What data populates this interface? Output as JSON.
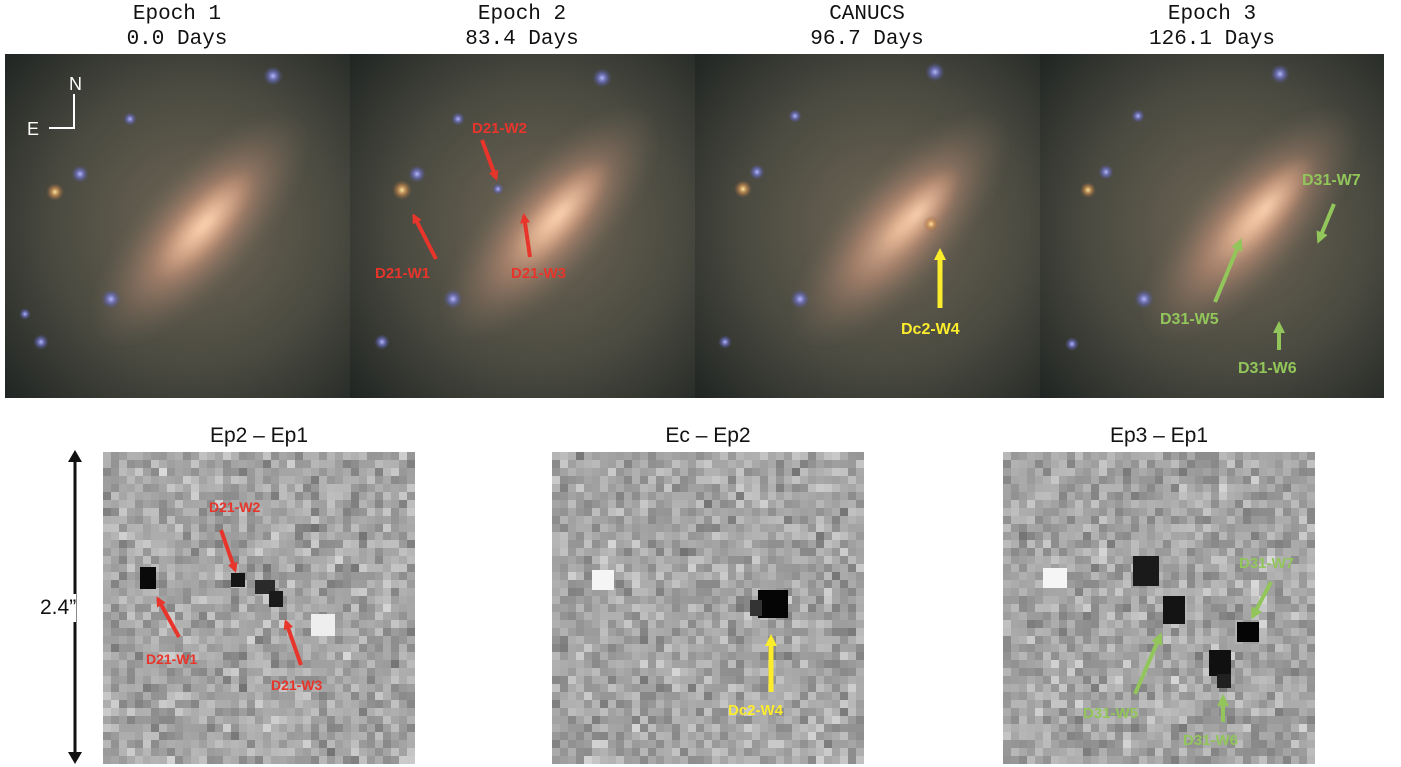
{
  "epochs": [
    {
      "name": "Epoch 1",
      "days": "0.0 Days"
    },
    {
      "name": "Epoch 2",
      "days": "83.4 Days"
    },
    {
      "name": "CANUCS",
      "days": "96.7 Days"
    },
    {
      "name": "Epoch 3",
      "days": "126.1 Days"
    }
  ],
  "compass": {
    "north": "N",
    "east": "E"
  },
  "labels": {
    "d21w1": "D21-W1",
    "d21w2": "D21-W2",
    "d21w3": "D21-W3",
    "dc2w4": "Dc2-W4",
    "d31w5": "D31-W5",
    "d31w6": "D31-W6",
    "d31w7": "D31-W7"
  },
  "differences": [
    {
      "title": "Ep2 – Ep1"
    },
    {
      "title": "Ec – Ep2"
    },
    {
      "title": "Ep3 – Ep1"
    }
  ],
  "scale_bar": "2.4”",
  "colors": {
    "red": "#e8352b",
    "yellow": "#fbec2c",
    "green": "#92c65a"
  }
}
